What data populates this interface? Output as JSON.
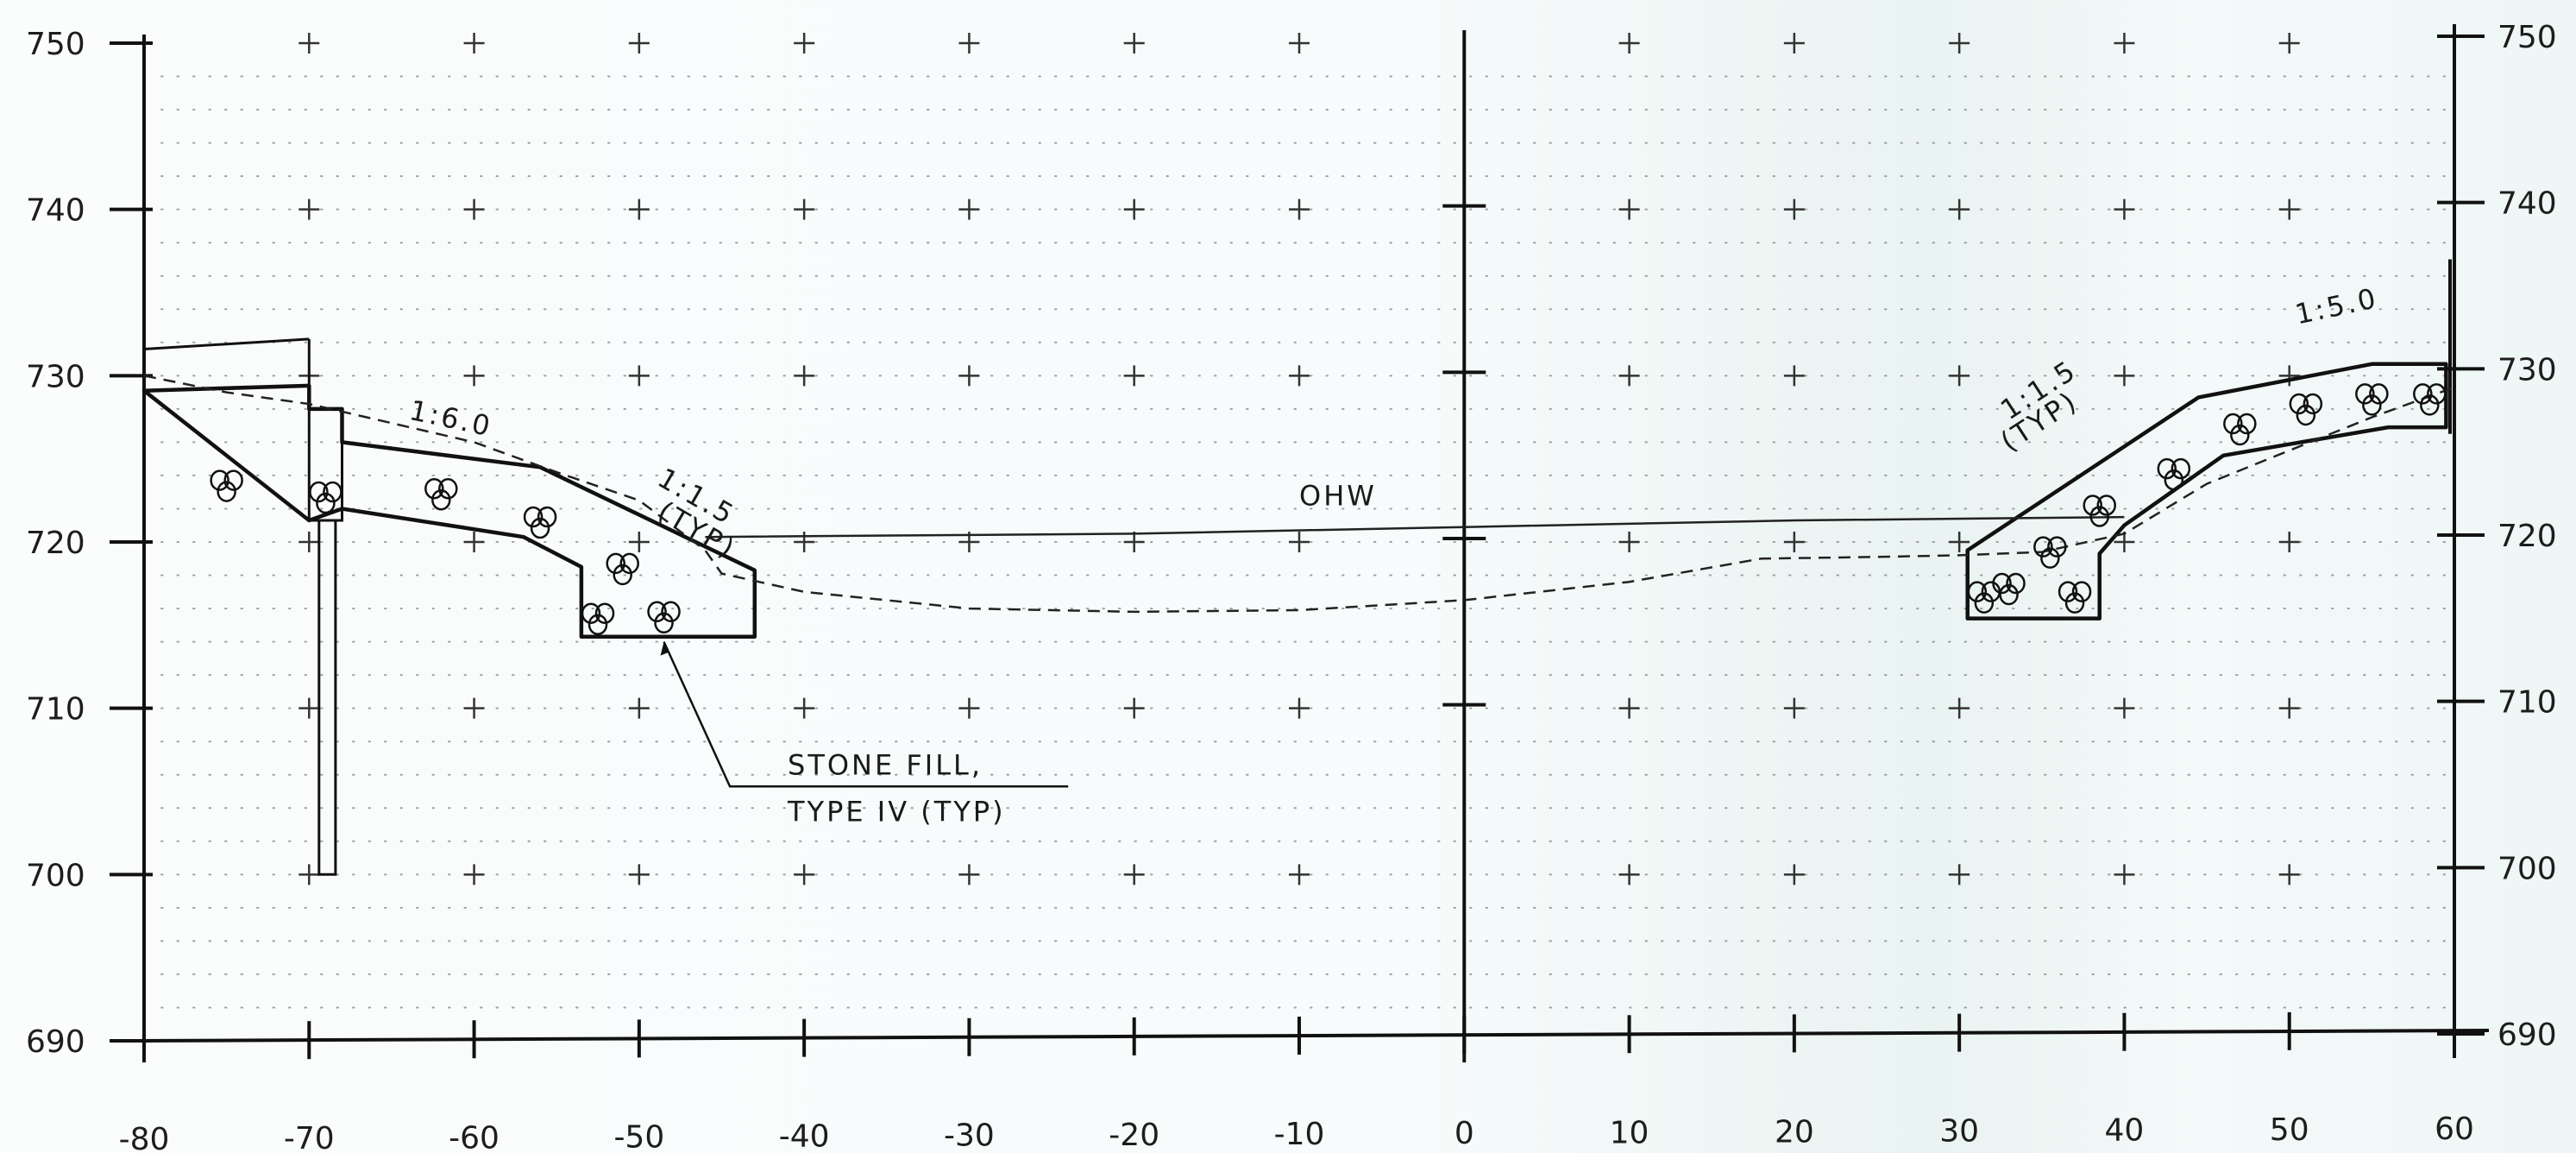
{
  "chart_data": {
    "type": "line",
    "title": "",
    "xlabel": "",
    "ylabel": "",
    "xlim": [
      -80,
      60
    ],
    "ylim": [
      690,
      750
    ],
    "x_ticks": [
      "-80",
      "-70",
      "-60",
      "-50",
      "-40",
      "-30",
      "-20",
      "-10",
      "0",
      "10",
      "20",
      "30",
      "40",
      "50",
      "60"
    ],
    "y_ticks_left": [
      "750",
      "740",
      "730",
      "720",
      "710",
      "700",
      "690"
    ],
    "y_ticks_right": [
      "750",
      "740",
      "730",
      "720",
      "710",
      "700",
      "690"
    ],
    "grid": true,
    "series": [
      {
        "name": "",
        "style": "dashed",
        "points": [
          [
            -80,
            730
          ],
          [
            -75,
            729
          ],
          [
            -70,
            728.3
          ],
          [
            -60,
            726
          ],
          [
            -55,
            724.2
          ],
          [
            -50,
            722.5
          ],
          [
            -46,
            719.5
          ],
          [
            -45,
            718.1
          ],
          [
            -40,
            717
          ],
          [
            -30,
            716
          ],
          [
            -20,
            715.8
          ],
          [
            -10,
            715.9
          ],
          [
            0,
            716.5
          ],
          [
            10,
            717.6
          ],
          [
            18,
            719
          ],
          [
            25,
            719.1
          ],
          [
            30,
            719.2
          ],
          [
            35,
            719.4
          ],
          [
            40,
            720.5
          ],
          [
            45,
            723.5
          ],
          [
            50,
            725.5
          ],
          [
            55,
            727.5
          ],
          [
            60,
            729.3
          ]
        ]
      },
      {
        "name": "OHW",
        "style": "solid",
        "points": [
          [
            -46,
            720.3
          ],
          [
            -20,
            720.5
          ],
          [
            0,
            720.9
          ],
          [
            20,
            721.3
          ],
          [
            40,
            721.5
          ]
        ]
      }
    ],
    "stone_fill_left": {
      "outer": [
        [
          -80,
          729.1
        ],
        [
          -70,
          729.4
        ],
        [
          -70,
          728
        ],
        [
          -68,
          728
        ],
        [
          -68,
          726
        ],
        [
          -56,
          724.5
        ],
        [
          -47,
          720.2
        ],
        [
          -43,
          718.3
        ],
        [
          -43,
          714.3
        ],
        [
          -53.5,
          714.3
        ],
        [
          -53.5,
          718.5
        ],
        [
          -57,
          720.3
        ],
        [
          -68,
          722
        ],
        [
          -70,
          721.3
        ]
      ],
      "inner_cap": [
        [
          -80,
          731.6
        ],
        [
          -70,
          732.2
        ]
      ],
      "wall": [
        [
          -69.4,
          721.3
        ],
        [
          -69.4,
          700
        ],
        [
          -68.4,
          700
        ],
        [
          -68.4,
          721.3
        ]
      ]
    },
    "stone_fill_right": {
      "outer": [
        [
          30.5,
          719.5
        ],
        [
          44.5,
          728.7
        ],
        [
          55,
          730.7
        ],
        [
          59.5,
          730.7
        ],
        [
          59.5,
          726.9
        ],
        [
          56,
          726.9
        ],
        [
          46,
          725.2
        ],
        [
          40,
          721
        ],
        [
          38.5,
          719.3
        ],
        [
          38.5,
          715.4
        ],
        [
          30.5,
          715.4
        ]
      ]
    },
    "annotations": [
      {
        "text": "1:6.0",
        "x": -64,
        "y": 727.4
      },
      {
        "text": "1:1.5",
        "x": -49,
        "y": 723.5
      },
      {
        "text": "(TYP)",
        "x": -49,
        "y": 721.5
      },
      {
        "text": "OHW",
        "x": -10,
        "y": 722.2
      },
      {
        "text": "STONE FILL,",
        "x": -41,
        "y": 706
      },
      {
        "text": "TYPE IV (TYP)",
        "x": -41,
        "y": 703.2
      },
      {
        "text": "1:1.5",
        "x": 33,
        "y": 727.3
      },
      {
        "text": "(TYP)",
        "x": 33,
        "y": 725.4
      },
      {
        "text": "1:5.0",
        "x": 50.5,
        "y": 733.1
      }
    ]
  }
}
